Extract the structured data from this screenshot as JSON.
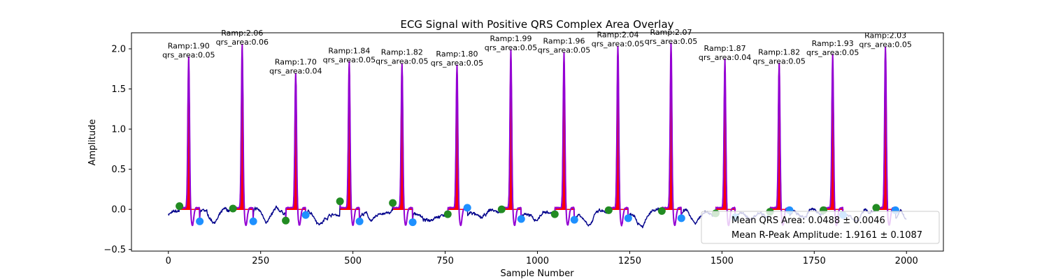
{
  "chart_data": {
    "type": "line",
    "title": "ECG Signal with Positive QRS Complex Area Overlay",
    "xlabel": "Sample Number",
    "ylabel": "Amplitude",
    "xlim": [
      -100,
      2100
    ],
    "ylim": [
      -0.52,
      2.2
    ],
    "x_ticks": [
      0,
      250,
      500,
      750,
      1000,
      1250,
      1500,
      1750,
      2000
    ],
    "y_ticks": [
      -0.5,
      0.0,
      0.5,
      1.0,
      1.5,
      2.0
    ],
    "x_tick_labels": [
      "0",
      "250",
      "500",
      "750",
      "1000",
      "1250",
      "1500",
      "1750",
      "2000"
    ],
    "y_tick_labels": [
      "−0.5",
      "0.0",
      "0.5",
      "1.0",
      "1.5",
      "2.0"
    ],
    "signal_color": "#00008b",
    "qrs_color": "#9400d3",
    "area_color": "#ff0000",
    "onset_color": "#228b22",
    "offset_color": "#1e90ff",
    "beats": [
      {
        "r": 55,
        "ramp": 1.9,
        "onset": 30,
        "offset": 85,
        "onset_y": 0.04,
        "offset_y": -0.15,
        "ramp_label": "Ramp:1.90",
        "area_label": "qrs_area:0.05"
      },
      {
        "r": 200,
        "ramp": 2.06,
        "onset": 175,
        "offset": 230,
        "onset_y": 0.01,
        "offset_y": -0.15,
        "ramp_label": "Ramp:2.06",
        "area_label": "qrs_area:0.06"
      },
      {
        "r": 345,
        "ramp": 1.7,
        "onset": 318,
        "offset": 372,
        "onset_y": -0.14,
        "offset_y": -0.07,
        "ramp_label": "Ramp:1.70",
        "area_label": "qrs_area:0.04"
      },
      {
        "r": 490,
        "ramp": 1.84,
        "onset": 465,
        "offset": 518,
        "onset_y": 0.1,
        "offset_y": -0.15,
        "ramp_label": "Ramp:1.84",
        "area_label": "qrs_area:0.05"
      },
      {
        "r": 633,
        "ramp": 1.82,
        "onset": 608,
        "offset": 662,
        "onset_y": 0.08,
        "offset_y": -0.16,
        "ramp_label": "Ramp:1.82",
        "area_label": "qrs_area:0.05"
      },
      {
        "r": 782,
        "ramp": 1.8,
        "onset": 757,
        "offset": 810,
        "onset_y": -0.06,
        "offset_y": 0.02,
        "ramp_label": "Ramp:1.80",
        "area_label": "qrs_area:0.05"
      },
      {
        "r": 928,
        "ramp": 1.99,
        "onset": 903,
        "offset": 956,
        "onset_y": 0.0,
        "offset_y": -0.12,
        "ramp_label": "Ramp:1.99",
        "area_label": "qrs_area:0.05"
      },
      {
        "r": 1072,
        "ramp": 1.96,
        "onset": 1047,
        "offset": 1100,
        "onset_y": -0.06,
        "offset_y": -0.13,
        "ramp_label": "Ramp:1.96",
        "area_label": "qrs_area:0.05"
      },
      {
        "r": 1218,
        "ramp": 2.04,
        "onset": 1193,
        "offset": 1246,
        "onset_y": -0.01,
        "offset_y": -0.11,
        "ramp_label": "Ramp:2.04",
        "area_label": "qrs_area:0.05"
      },
      {
        "r": 1362,
        "ramp": 2.07,
        "onset": 1337,
        "offset": 1390,
        "onset_y": -0.02,
        "offset_y": -0.11,
        "ramp_label": "Ramp:2.07",
        "area_label": "qrs_area:0.05"
      },
      {
        "r": 1508,
        "ramp": 1.87,
        "onset": 1483,
        "offset": 1536,
        "onset_y": -0.05,
        "offset_y": -0.1,
        "ramp_label": "Ramp:1.87",
        "area_label": "qrs_area:0.04"
      },
      {
        "r": 1655,
        "ramp": 1.82,
        "onset": 1630,
        "offset": 1683,
        "onset_y": -0.03,
        "offset_y": -0.01,
        "ramp_label": "Ramp:1.82",
        "area_label": "qrs_area:0.05"
      },
      {
        "r": 1800,
        "ramp": 1.93,
        "onset": 1775,
        "offset": 1828,
        "onset_y": -0.01,
        "offset_y": -0.07,
        "ramp_label": "Ramp:1.93",
        "area_label": "qrs_area:0.05"
      },
      {
        "r": 1943,
        "ramp": 2.03,
        "onset": 1918,
        "offset": 1970,
        "onset_y": 0.02,
        "offset_y": -0.01,
        "ramp_label": "Ramp:2.03",
        "area_label": "qrs_area:0.05"
      }
    ],
    "legend": [
      "Mean QRS Area: 0.0488 ± 0.0046",
      "Mean R-Peak Amplitude: 1.9161 ± 0.1087"
    ],
    "legend_position": "lower-right"
  }
}
